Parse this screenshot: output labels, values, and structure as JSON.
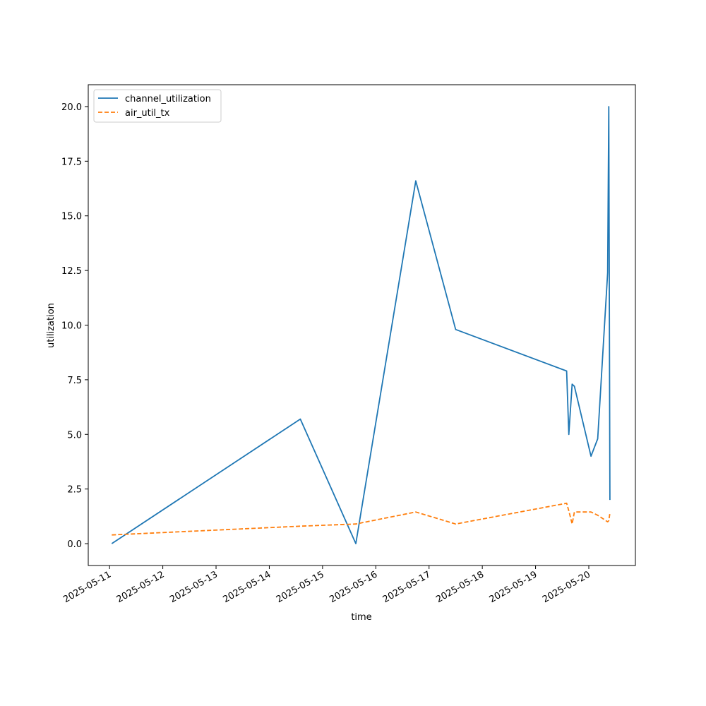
{
  "chart_data": {
    "type": "line",
    "title": "",
    "xlabel": "time",
    "ylabel": "utilization",
    "x_ticks": [
      "2025-05-11",
      "2025-05-12",
      "2025-05-13",
      "2025-05-14",
      "2025-05-15",
      "2025-05-16",
      "2025-05-17",
      "2025-05-18",
      "2025-05-19",
      "2025-05-20"
    ],
    "y_ticks": [
      "0.0",
      "2.5",
      "5.0",
      "7.5",
      "10.0",
      "12.5",
      "15.0",
      "17.5",
      "20.0"
    ],
    "xlim": [
      "2025-05-10 14:24",
      "2025-05-20 21:00"
    ],
    "ylim": [
      -1.0,
      21.0
    ],
    "grid": false,
    "legend": "upper-left",
    "series": [
      {
        "name": "channel_utilization",
        "color": "#1f77b4",
        "style": "solid",
        "points": [
          [
            "2025-05-11 01:00",
            0.0
          ],
          [
            "2025-05-14 14:00",
            5.7
          ],
          [
            "2025-05-15 15:00",
            0.0
          ],
          [
            "2025-05-16 18:00",
            16.6
          ],
          [
            "2025-05-17 12:00",
            9.8
          ],
          [
            "2025-05-19 14:00",
            7.9
          ],
          [
            "2025-05-19 15:00",
            5.0
          ],
          [
            "2025-05-19 16:30",
            7.3
          ],
          [
            "2025-05-19 17:30",
            7.2
          ],
          [
            "2025-05-20 01:00",
            4.0
          ],
          [
            "2025-05-20 04:00",
            4.8
          ],
          [
            "2025-05-20 08:30",
            12.4
          ],
          [
            "2025-05-20 09:00",
            20.0
          ],
          [
            "2025-05-20 09:30",
            2.0
          ]
        ]
      },
      {
        "name": "air_util_tx",
        "color": "#ff7f0e",
        "style": "dashed",
        "points": [
          [
            "2025-05-11 01:00",
            0.4
          ],
          [
            "2025-05-14 14:00",
            0.8
          ],
          [
            "2025-05-15 15:00",
            0.9
          ],
          [
            "2025-05-16 18:00",
            1.45
          ],
          [
            "2025-05-17 12:00",
            0.9
          ],
          [
            "2025-05-19 14:00",
            1.85
          ],
          [
            "2025-05-19 15:00",
            1.5
          ],
          [
            "2025-05-19 16:30",
            0.9
          ],
          [
            "2025-05-19 17:30",
            1.45
          ],
          [
            "2025-05-20 01:00",
            1.45
          ],
          [
            "2025-05-20 04:00",
            1.3
          ],
          [
            "2025-05-20 08:30",
            1.0
          ],
          [
            "2025-05-20 09:00",
            1.05
          ],
          [
            "2025-05-20 09:30",
            1.4
          ]
        ]
      }
    ]
  }
}
